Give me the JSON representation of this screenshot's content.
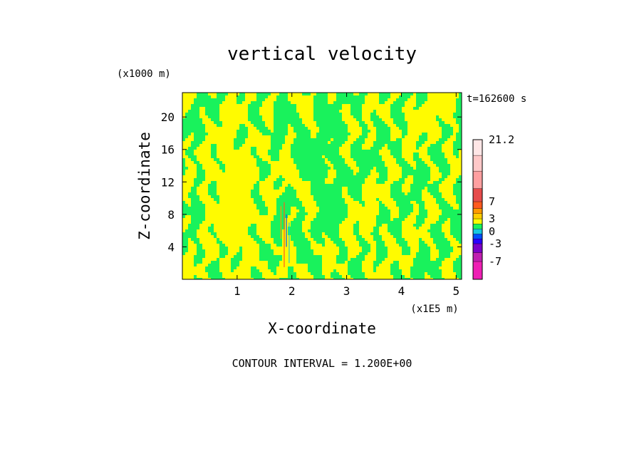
{
  "chart_data": {
    "type": "heatmap",
    "title": "vertical velocity",
    "xlabel": "X-coordinate",
    "ylabel": "Z-coordinate",
    "x_unit": "(x1E5 m)",
    "y_unit": "(x1000 m)",
    "time_label": "t=162600 s",
    "contour_interval": "CONTOUR INTERVAL = 1.200E+00",
    "xlim": [
      0,
      5.1
    ],
    "ylim": [
      0,
      23
    ],
    "x_ticks": [
      1,
      2,
      3,
      4,
      5
    ],
    "y_ticks": [
      4,
      8,
      12,
      16,
      20
    ],
    "colorbar": {
      "labels": [
        "21.2",
        "7",
        "3",
        "0",
        "-3",
        "-7"
      ],
      "label_values": [
        21.2,
        7,
        3,
        0,
        -3,
        -7
      ],
      "levels": [
        -10,
        -7,
        -5,
        -3,
        -1.8,
        -0.6,
        0.6,
        1.8,
        3,
        4.2,
        5.4,
        7,
        10,
        14,
        17.6,
        21.2
      ],
      "colors": [
        "#ee1fb4",
        "#c01fb0",
        "#7b00c8",
        "#2a00ff",
        "#0050ff",
        "#16c8e0",
        "#19f25c",
        "#fffb00",
        "#ffcc00",
        "#ff9900",
        "#ff5a1f",
        "#e64b4b",
        "#ff9fa0",
        "#ffc8c8",
        "#ffe6e6"
      ]
    },
    "dominant_range": [
      -0.6,
      1.8
    ],
    "dominant_colors": {
      "negative": "#19f25c",
      "positive": "#fffb00"
    }
  }
}
